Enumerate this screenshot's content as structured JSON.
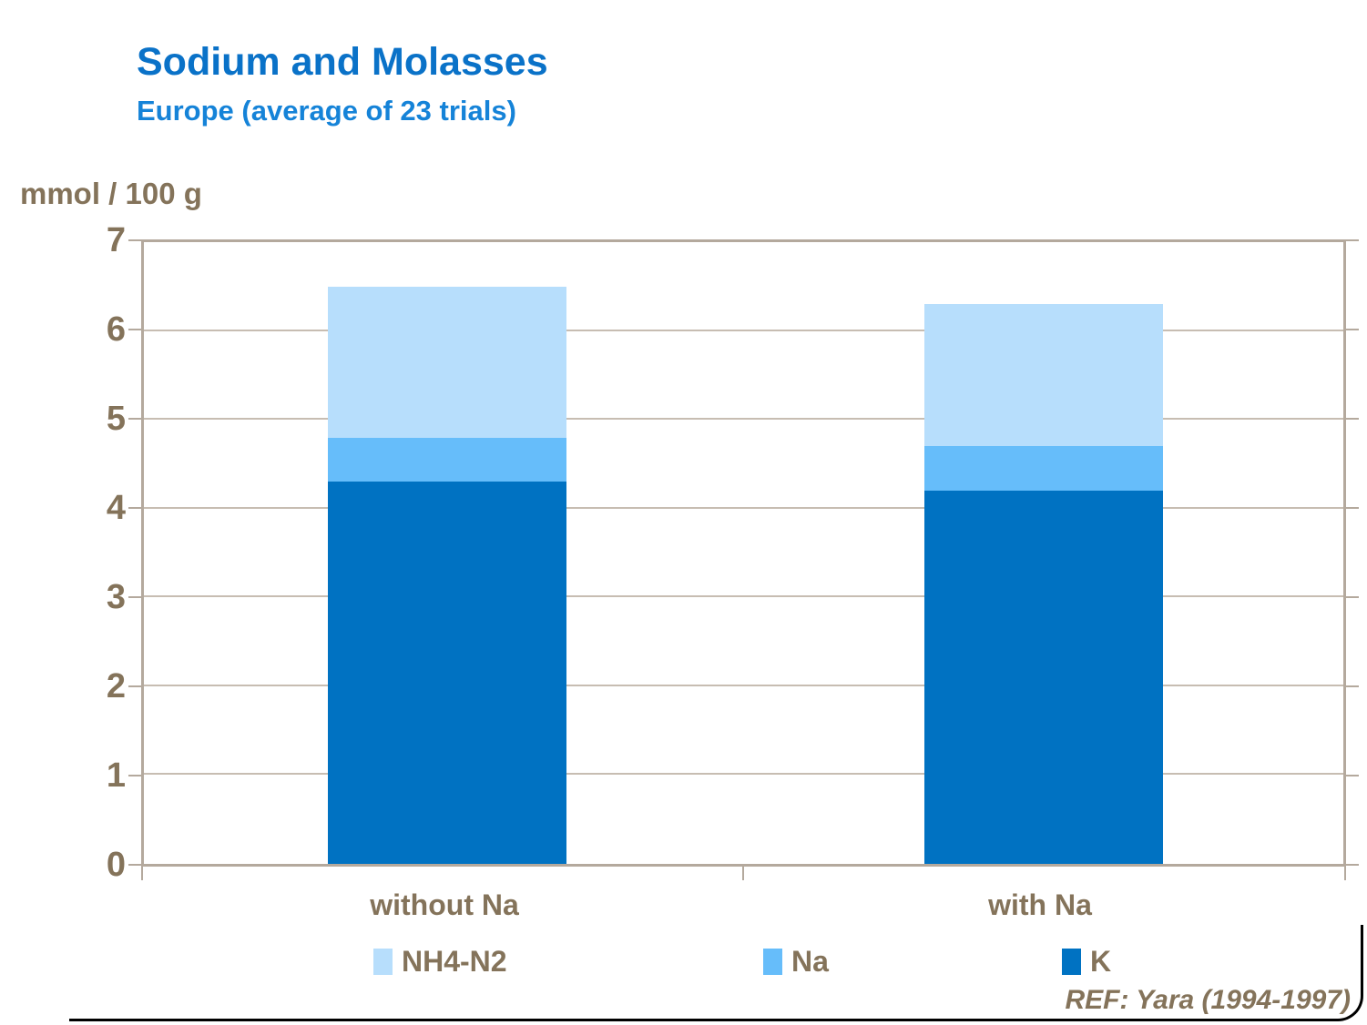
{
  "title": "Sodium and Molasses",
  "subtitle": "Europe (average of 23 trials)",
  "y_axis_unit": "mmol / 100 g",
  "ref_note": "REF: Yara (1994-1997)",
  "colors": {
    "title_blue": "#0a72c8",
    "subtitle_blue": "#1583d8",
    "text_brown": "#84735a",
    "plot_border": "#b4a99d",
    "gridline": "#c7bdb2",
    "k_blue": "#0072c2",
    "na_blue": "#66bdfa",
    "nh4_blue": "#b7defc"
  },
  "chart_data": {
    "type": "bar",
    "stacked": true,
    "title": "Sodium and Molasses",
    "subtitle": "Europe (average of 23 trials)",
    "ylabel": "mmol / 100 g",
    "xlabel": "",
    "ylim": [
      0,
      7
    ],
    "yticks": [
      0,
      1,
      2,
      3,
      4,
      5,
      6,
      7
    ],
    "grid": true,
    "legend_position": "bottom",
    "categories": [
      "without Na",
      "with Na"
    ],
    "series": [
      {
        "name": "K",
        "color": "#0072c2",
        "values": [
          4.3,
          4.2
        ]
      },
      {
        "name": "Na",
        "color": "#66bdfa",
        "values": [
          0.5,
          0.5
        ]
      },
      {
        "name": "NH4-N2",
        "color": "#b7defc",
        "values": [
          1.7,
          1.6
        ]
      }
    ],
    "totals": [
      6.5,
      6.3
    ]
  },
  "legend": {
    "items": [
      {
        "label": "NH4-N2",
        "series": "NH4-N2"
      },
      {
        "label": "Na",
        "series": "Na"
      },
      {
        "label": "K",
        "series": "K"
      }
    ]
  }
}
